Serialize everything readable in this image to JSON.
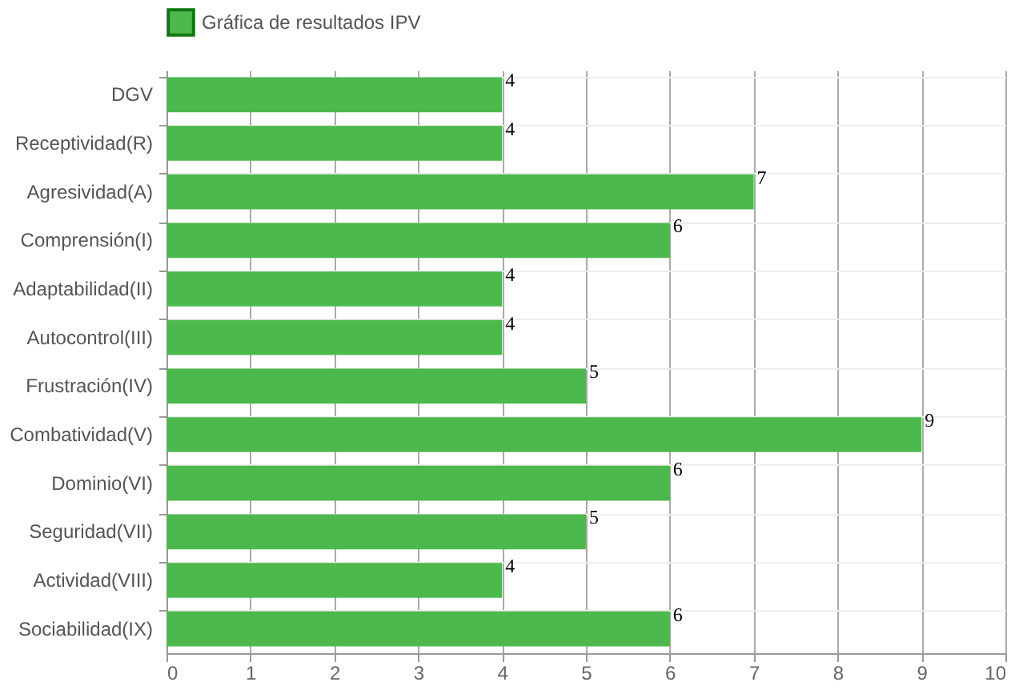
{
  "chart_data": {
    "type": "bar",
    "orientation": "horizontal",
    "categories": [
      "DGV",
      "Receptividad(R)",
      "Agresividad(A)",
      "Comprensión(I)",
      "Adaptabilidad(II)",
      "Autocontrol(III)",
      "Frustración(IV)",
      "Combatividad(V)",
      "Dominio(VI)",
      "Seguridad(VII)",
      "Actividad(VIII)",
      "Sociabilidad(IX)"
    ],
    "series": [
      {
        "name": "Gráfica de resultados IPV",
        "color": "#4db84d",
        "values": [
          4,
          4,
          7,
          6,
          4,
          4,
          5,
          9,
          6,
          5,
          4,
          6
        ]
      }
    ],
    "xlim": [
      0,
      10
    ],
    "xticks": [
      0,
      1,
      2,
      3,
      4,
      5,
      6,
      7,
      8,
      9,
      10
    ],
    "grid": true,
    "legend": "top",
    "data_labels": true
  }
}
